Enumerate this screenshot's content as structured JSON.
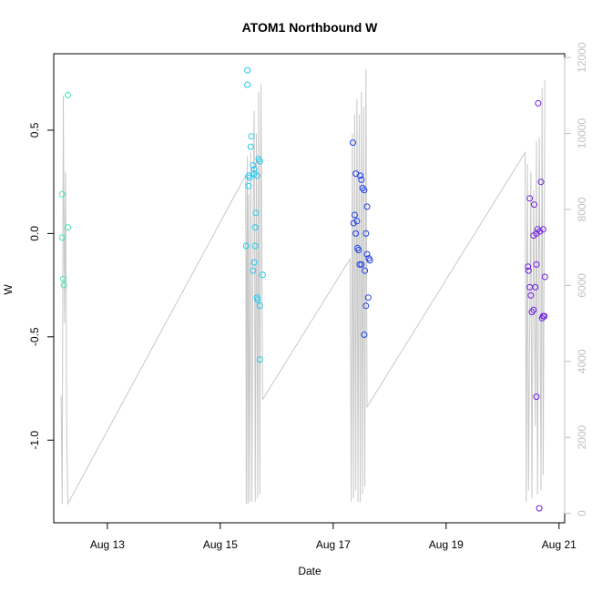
{
  "chart_data": {
    "type": "scatter",
    "title": "ATOM1 Northbound W",
    "xlabel": "Date",
    "ylabel": "W",
    "x_ticks": [
      "Aug 13",
      "Aug 15",
      "Aug 17",
      "Aug 19",
      "Aug 21"
    ],
    "x_tick_days": [
      13,
      15,
      17,
      19,
      21
    ],
    "xlim_days": [
      12.05,
      21.1
    ],
    "y_ticks": [
      "-1.0",
      "-0.5",
      "0.0",
      "0.5"
    ],
    "y_tick_values": [
      -1.0,
      -0.5,
      0.0,
      0.5
    ],
    "ylim": [
      -1.4,
      0.87
    ],
    "y2_ticks": [
      "0",
      "2000",
      "4000",
      "6000",
      "8000",
      "10000",
      "12000"
    ],
    "y2_tick_values": [
      0,
      2000,
      4000,
      6000,
      8000,
      10000,
      12000
    ],
    "y2lim": [
      -250,
      12100
    ],
    "grid": false,
    "legend": "none",
    "colors": {
      "frame": "#000000",
      "secondary_line": "#c8c8c8",
      "secondary_axis": "#c0c0c0"
    },
    "series": [
      {
        "color": "#3ee8b0",
        "points": [
          [
            12.2,
            0.19
          ],
          [
            12.2,
            -0.02
          ],
          [
            12.22,
            -0.22
          ],
          [
            12.23,
            -0.25
          ],
          [
            12.3,
            0.67
          ],
          [
            12.3,
            0.03
          ]
        ]
      },
      {
        "color": "#20c8f0",
        "points": [
          [
            15.48,
            0.79
          ],
          [
            15.48,
            0.72
          ],
          [
            15.46,
            -0.06
          ],
          [
            15.5,
            0.28
          ],
          [
            15.52,
            0.27
          ],
          [
            15.5,
            0.23
          ],
          [
            15.55,
            0.47
          ],
          [
            15.54,
            0.42
          ],
          [
            15.58,
            0.33
          ],
          [
            15.6,
            0.31
          ],
          [
            15.6,
            0.29
          ],
          [
            15.58,
            -0.18
          ],
          [
            15.6,
            -0.14
          ],
          [
            15.62,
            -0.06
          ],
          [
            15.62,
            0.03
          ],
          [
            15.63,
            0.1
          ],
          [
            15.65,
            0.28
          ],
          [
            15.65,
            -0.31
          ],
          [
            15.66,
            -0.32
          ],
          [
            15.68,
            0.36
          ],
          [
            15.7,
            0.35
          ],
          [
            15.7,
            -0.35
          ],
          [
            15.7,
            -0.61
          ],
          [
            15.75,
            -0.2
          ]
        ]
      },
      {
        "color": "#2040e8",
        "points": [
          [
            17.35,
            0.44
          ],
          [
            17.36,
            0.05
          ],
          [
            17.38,
            0.09
          ],
          [
            17.4,
            0.29
          ],
          [
            17.4,
            0.0
          ],
          [
            17.42,
            0.06
          ],
          [
            17.43,
            -0.07
          ],
          [
            17.45,
            -0.08
          ],
          [
            17.48,
            0.28
          ],
          [
            17.47,
            -0.15
          ],
          [
            17.5,
            -0.15
          ],
          [
            17.5,
            0.26
          ],
          [
            17.52,
            0.22
          ],
          [
            17.55,
            0.21
          ],
          [
            17.55,
            -0.49
          ],
          [
            17.56,
            -0.18
          ],
          [
            17.58,
            0.0
          ],
          [
            17.6,
            0.13
          ],
          [
            17.58,
            -0.35
          ],
          [
            17.62,
            -0.31
          ],
          [
            17.6,
            -0.1
          ],
          [
            17.63,
            -0.12
          ],
          [
            17.65,
            -0.13
          ]
        ]
      },
      {
        "color": "#7020e0",
        "points": [
          [
            20.45,
            -0.16
          ],
          [
            20.46,
            -0.18
          ],
          [
            20.48,
            0.17
          ],
          [
            20.48,
            -0.26
          ],
          [
            20.5,
            -0.3
          ],
          [
            20.52,
            -0.38
          ],
          [
            20.55,
            -0.37
          ],
          [
            20.55,
            -0.01
          ],
          [
            20.56,
            0.14
          ],
          [
            20.58,
            -0.26
          ],
          [
            20.6,
            -0.15
          ],
          [
            20.6,
            0.0
          ],
          [
            20.62,
            0.02
          ],
          [
            20.6,
            -0.79
          ],
          [
            20.63,
            0.63
          ],
          [
            20.65,
            -1.33
          ],
          [
            20.66,
            0.01
          ],
          [
            20.68,
            0.25
          ],
          [
            20.7,
            -0.41
          ],
          [
            20.72,
            -0.4
          ],
          [
            20.74,
            -0.4
          ],
          [
            20.72,
            0.02
          ],
          [
            20.75,
            -0.21
          ]
        ]
      }
    ],
    "secondary_line": {
      "axis": "right",
      "points": [
        [
          12.18,
          3100
        ],
        [
          12.2,
          250
        ],
        [
          12.22,
          11000
        ],
        [
          12.24,
          5000
        ],
        [
          12.26,
          9000
        ],
        [
          12.28,
          2000
        ],
        [
          12.3,
          250
        ],
        [
          15.45,
          8900
        ],
        [
          15.46,
          250
        ],
        [
          15.47,
          6500
        ],
        [
          15.48,
          9400
        ],
        [
          15.49,
          250
        ],
        [
          15.5,
          8400
        ],
        [
          15.52,
          300
        ],
        [
          15.54,
          9500
        ],
        [
          15.56,
          300
        ],
        [
          15.58,
          7500
        ],
        [
          15.6,
          10600
        ],
        [
          15.62,
          300
        ],
        [
          15.64,
          10000
        ],
        [
          15.66,
          400
        ],
        [
          15.68,
          11100
        ],
        [
          15.7,
          500
        ],
        [
          15.72,
          11300
        ],
        [
          15.75,
          3000
        ],
        [
          17.3,
          6700
        ],
        [
          17.32,
          300
        ],
        [
          17.34,
          10000
        ],
        [
          17.36,
          400
        ],
        [
          17.38,
          10500
        ],
        [
          17.4,
          600
        ],
        [
          17.42,
          10900
        ],
        [
          17.44,
          300
        ],
        [
          17.46,
          10500
        ],
        [
          17.48,
          300
        ],
        [
          17.5,
          11100
        ],
        [
          17.52,
          500
        ],
        [
          17.54,
          10700
        ],
        [
          17.56,
          700
        ],
        [
          17.58,
          11700
        ],
        [
          17.6,
          2800
        ],
        [
          20.4,
          9500
        ],
        [
          20.42,
          300
        ],
        [
          20.44,
          9200
        ],
        [
          20.46,
          600
        ],
        [
          20.5,
          9000
        ],
        [
          20.52,
          400
        ],
        [
          20.55,
          8500
        ],
        [
          20.58,
          2300
        ],
        [
          20.6,
          9800
        ],
        [
          20.62,
          500
        ],
        [
          20.65,
          9900
        ],
        [
          20.68,
          600
        ],
        [
          20.7,
          11200
        ],
        [
          20.72,
          1000
        ],
        [
          20.75,
          11400
        ]
      ]
    }
  }
}
